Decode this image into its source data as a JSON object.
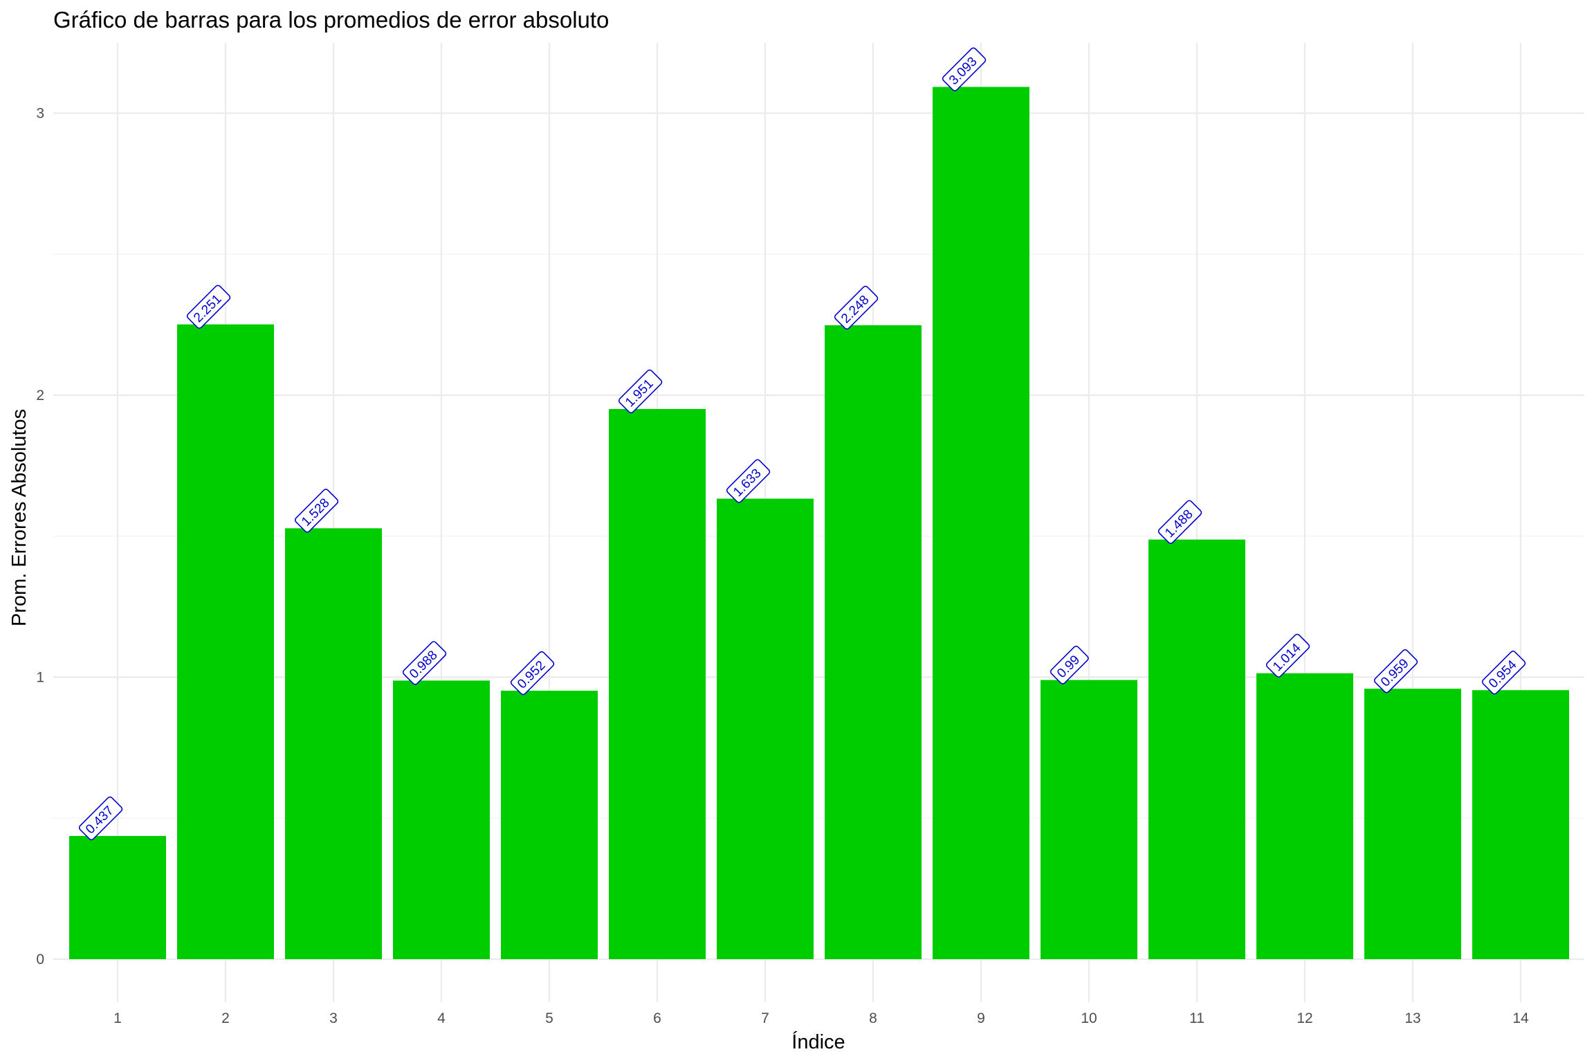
{
  "chart_data": {
    "type": "bar",
    "title": "Gráfico de barras para los promedios de error absoluto",
    "xlabel": "Índice",
    "ylabel": "Prom. Errores Absolutos",
    "categories": [
      "1",
      "2",
      "3",
      "4",
      "5",
      "6",
      "7",
      "8",
      "9",
      "10",
      "11",
      "12",
      "13",
      "14"
    ],
    "values": [
      0.437,
      2.251,
      1.528,
      0.988,
      0.952,
      1.951,
      1.633,
      2.248,
      3.093,
      0.99,
      1.488,
      1.014,
      0.959,
      0.954
    ],
    "data_labels": [
      "0.437",
      "2.251",
      "1.528",
      "0.988",
      "0.952",
      "1.951",
      "1.633",
      "2.248",
      "3.093",
      "0.99",
      "1.488",
      "1.014",
      "0.959",
      "0.954"
    ],
    "y_ticks": [
      0,
      1,
      2,
      3
    ],
    "y_tick_labels": [
      "0",
      "1",
      "2",
      "3"
    ],
    "ylim": [
      0,
      3.25
    ],
    "grid": true,
    "legend": "none",
    "colors": {
      "bar": "#00CD00",
      "label_text": "#0000CD",
      "label_border": "#0000CD",
      "label_fill": "#FFFFFF",
      "grid_major": "#EBEBEB",
      "grid_minor": "#F5F5F5",
      "tick_text": "#4D4D4D"
    }
  }
}
